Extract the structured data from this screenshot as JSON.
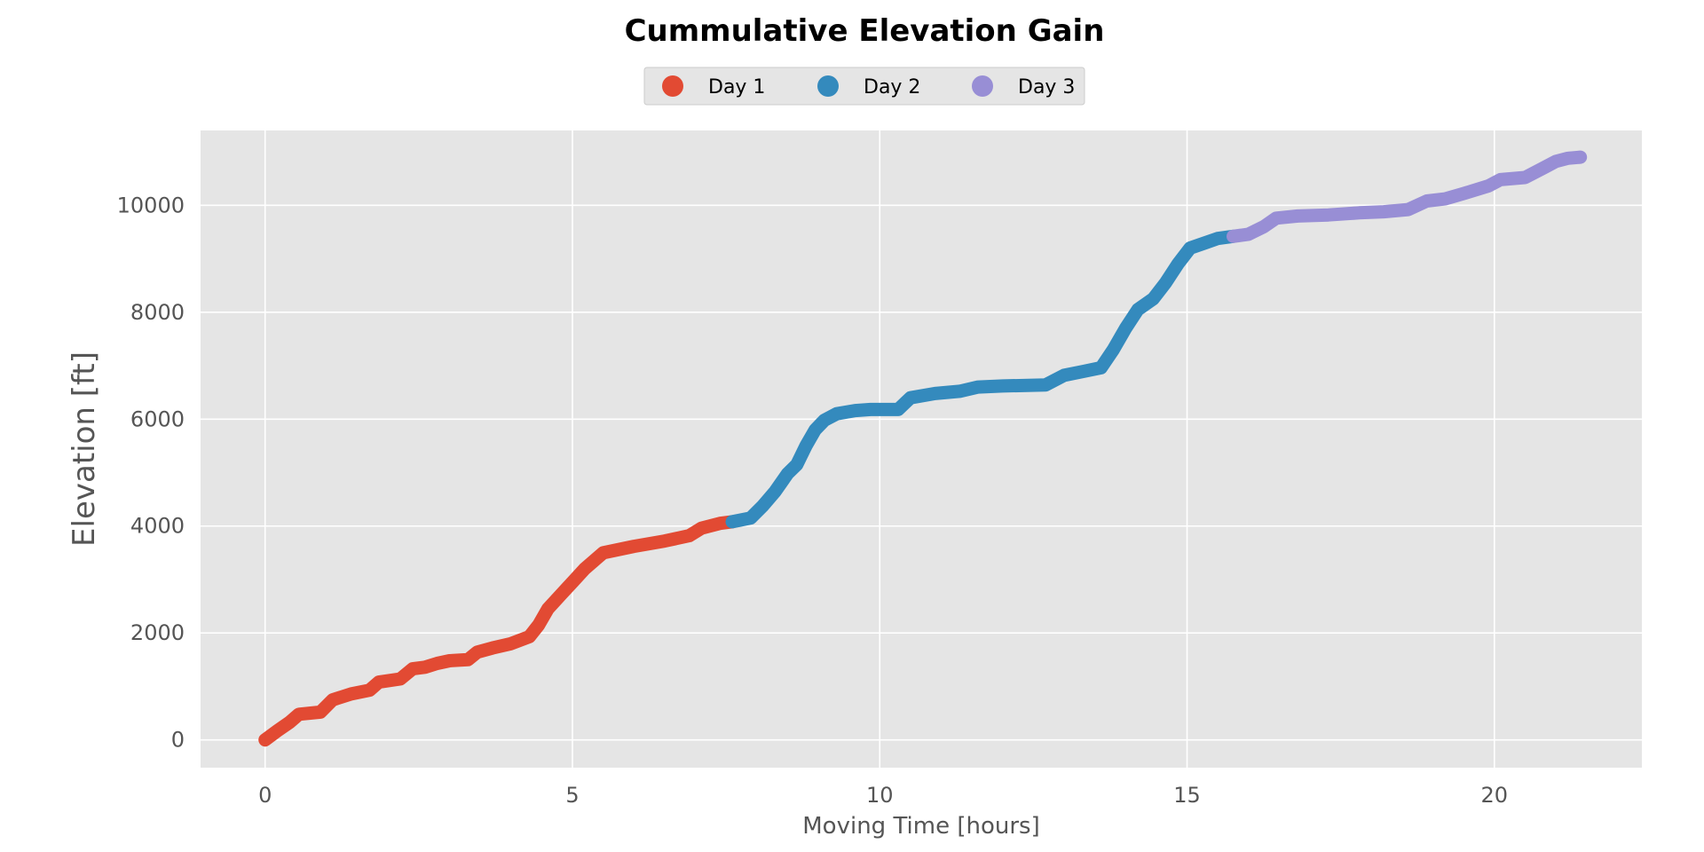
{
  "chart_data": {
    "type": "line",
    "title": "Cummulative Elevation Gain",
    "xlabel": "Moving Time [hours]",
    "ylabel": "Elevation [ft]",
    "xlim": [
      -1.05,
      22.4
    ],
    "ylim": [
      -520,
      11400
    ],
    "xticks": [
      0,
      5,
      10,
      15,
      20
    ],
    "yticks": [
      0,
      2000,
      4000,
      6000,
      8000,
      10000
    ],
    "grid": true,
    "legend_position": "top-center",
    "background_color": "#e5e5e5",
    "series": [
      {
        "name": "Day 1",
        "color": "#e24a33",
        "points": [
          [
            0,
            0
          ],
          [
            0.2,
            170
          ],
          [
            0.4,
            330
          ],
          [
            0.55,
            480
          ],
          [
            0.9,
            520
          ],
          [
            1.1,
            750
          ],
          [
            1.4,
            860
          ],
          [
            1.7,
            930
          ],
          [
            1.85,
            1080
          ],
          [
            2.2,
            1140
          ],
          [
            2.4,
            1330
          ],
          [
            2.6,
            1360
          ],
          [
            2.8,
            1430
          ],
          [
            3.0,
            1480
          ],
          [
            3.3,
            1500
          ],
          [
            3.45,
            1640
          ],
          [
            3.7,
            1720
          ],
          [
            4.0,
            1800
          ],
          [
            4.3,
            1930
          ],
          [
            4.45,
            2150
          ],
          [
            4.6,
            2450
          ],
          [
            4.8,
            2700
          ],
          [
            5.0,
            2950
          ],
          [
            5.2,
            3200
          ],
          [
            5.35,
            3350
          ],
          [
            5.5,
            3500
          ],
          [
            6.0,
            3620
          ],
          [
            6.5,
            3720
          ],
          [
            6.9,
            3820
          ],
          [
            7.1,
            3960
          ],
          [
            7.4,
            4050
          ],
          [
            7.6,
            4080
          ]
        ]
      },
      {
        "name": "Day 2",
        "color": "#348abd",
        "points": [
          [
            7.6,
            4080
          ],
          [
            7.9,
            4150
          ],
          [
            8.1,
            4380
          ],
          [
            8.3,
            4650
          ],
          [
            8.5,
            4980
          ],
          [
            8.65,
            5150
          ],
          [
            8.8,
            5500
          ],
          [
            8.95,
            5800
          ],
          [
            9.1,
            5980
          ],
          [
            9.3,
            6100
          ],
          [
            9.6,
            6160
          ],
          [
            9.85,
            6180
          ],
          [
            10.3,
            6180
          ],
          [
            10.5,
            6400
          ],
          [
            10.9,
            6480
          ],
          [
            11.3,
            6520
          ],
          [
            11.6,
            6600
          ],
          [
            12.0,
            6620
          ],
          [
            12.7,
            6640
          ],
          [
            13.0,
            6820
          ],
          [
            13.3,
            6890
          ],
          [
            13.6,
            6960
          ],
          [
            13.8,
            7300
          ],
          [
            14.0,
            7700
          ],
          [
            14.2,
            8050
          ],
          [
            14.45,
            8250
          ],
          [
            14.65,
            8550
          ],
          [
            14.85,
            8900
          ],
          [
            15.05,
            9200
          ],
          [
            15.3,
            9300
          ],
          [
            15.5,
            9380
          ],
          [
            15.75,
            9420
          ]
        ]
      },
      {
        "name": "Day 3",
        "color": "#988ed5",
        "points": [
          [
            15.75,
            9420
          ],
          [
            16.0,
            9460
          ],
          [
            16.25,
            9600
          ],
          [
            16.45,
            9760
          ],
          [
            16.8,
            9800
          ],
          [
            17.3,
            9820
          ],
          [
            17.8,
            9860
          ],
          [
            18.2,
            9880
          ],
          [
            18.6,
            9920
          ],
          [
            18.9,
            10080
          ],
          [
            19.2,
            10120
          ],
          [
            19.5,
            10220
          ],
          [
            19.9,
            10360
          ],
          [
            20.1,
            10480
          ],
          [
            20.5,
            10520
          ],
          [
            20.8,
            10700
          ],
          [
            21.0,
            10820
          ],
          [
            21.2,
            10880
          ],
          [
            21.4,
            10900
          ]
        ]
      }
    ]
  }
}
